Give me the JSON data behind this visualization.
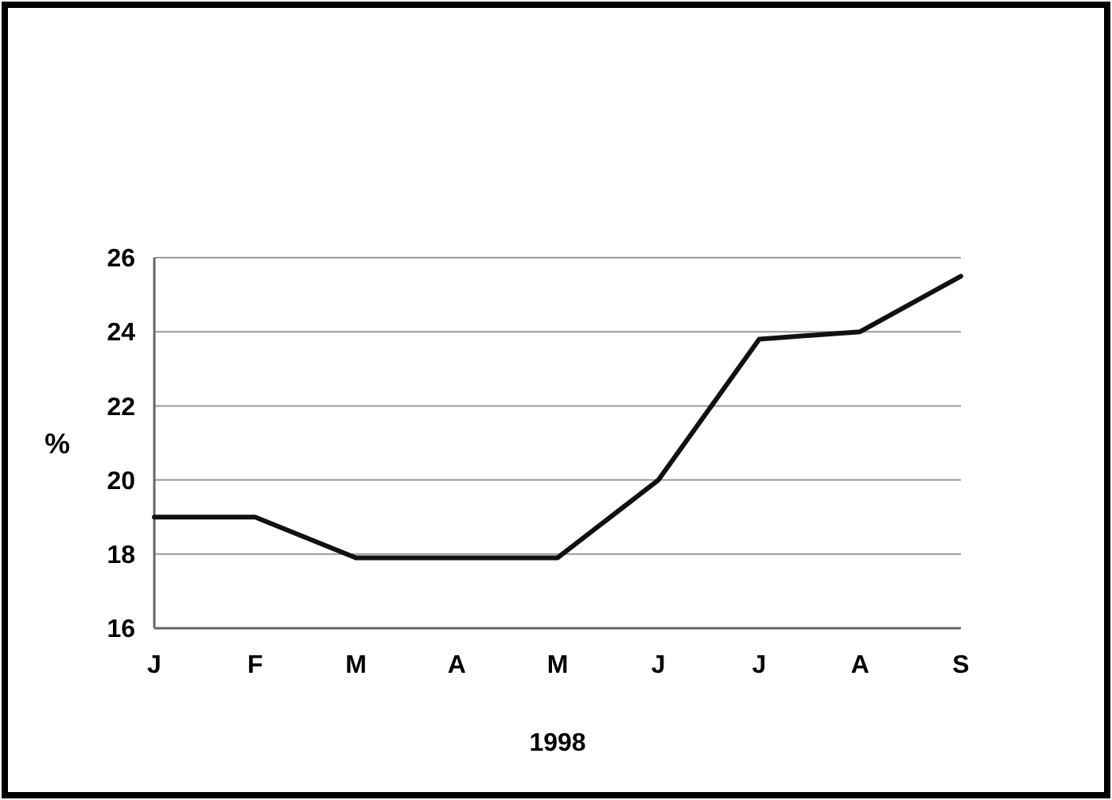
{
  "chart_data": {
    "type": "line",
    "xlabel": "1998",
    "ylabel": "%",
    "categories": [
      "J",
      "F",
      "M",
      "A",
      "M",
      "J",
      "J",
      "A",
      "S"
    ],
    "series": [
      {
        "color": "#111111",
        "values": [
          19,
          19,
          17.9,
          17.9,
          17.9,
          20,
          23.8,
          24,
          25.5
        ]
      }
    ],
    "ylim": [
      16,
      26
    ],
    "yticks": [
      16,
      18,
      20,
      22,
      24,
      26
    ],
    "grid": "y",
    "marker": "none",
    "line_style": "solid"
  }
}
